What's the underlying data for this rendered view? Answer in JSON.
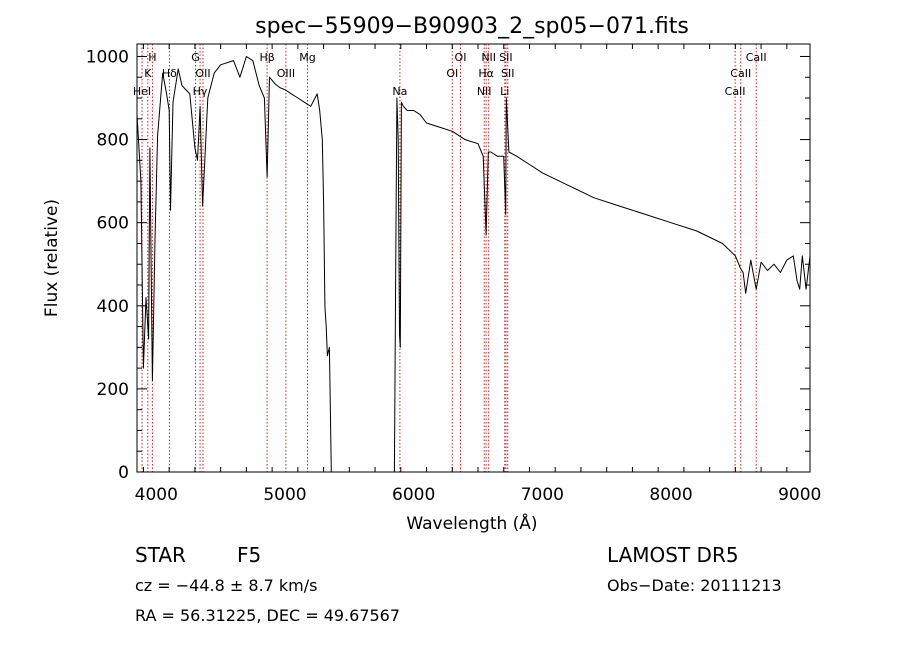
{
  "title": "spec−55909−B90903_2_sp05−071.fits",
  "chart_data": {
    "type": "line",
    "title": "spec−55909−B90903_2_sp05−071.fits",
    "xlabel": "Wavelength (Å)",
    "ylabel": "Flux (relative)",
    "xlim": [
      3850,
      9080
    ],
    "ylim": [
      0,
      1030
    ],
    "xticks": [
      4000,
      5000,
      6000,
      7000,
      8000,
      9000
    ],
    "yticks": [
      0,
      200,
      400,
      600,
      800,
      1000
    ],
    "grid": false,
    "series": [
      {
        "color": "#000000",
        "x": [
          3850,
          3880,
          3900,
          3920,
          3940,
          3950,
          3960,
          3970,
          3990,
          4010,
          4050,
          4080,
          4100,
          4110,
          4130,
          4170,
          4200,
          4260,
          4300,
          4320,
          4340,
          4360,
          4400,
          4450,
          4500,
          4600,
          4650,
          4700,
          4750,
          4800,
          4840,
          4861,
          4880,
          4920,
          4960,
          5000,
          5050,
          5100,
          5150,
          5200,
          5250,
          5270,
          5290,
          5300,
          5310,
          5320,
          5330,
          5345,
          5360,
          5850,
          5862,
          5870,
          5880,
          5890,
          5896,
          5905,
          5920,
          5950,
          6000,
          6050,
          6100,
          6200,
          6300,
          6400,
          6500,
          6540,
          6563,
          6580,
          6600,
          6650,
          6700,
          6715,
          6720,
          6740,
          6800,
          6900,
          7000,
          7200,
          7400,
          7600,
          7800,
          8000,
          8200,
          8400,
          8500,
          8540,
          8560,
          8580,
          8620,
          8662,
          8700,
          8750,
          8800,
          8850,
          8900,
          8950,
          8980,
          9000,
          9020,
          9050,
          9080
        ],
        "y": [
          860,
          700,
          250,
          420,
          320,
          780,
          480,
          220,
          560,
          810,
          960,
          910,
          870,
          630,
          890,
          970,
          930,
          910,
          780,
          750,
          880,
          640,
          900,
          960,
          980,
          990,
          950,
          1000,
          990,
          930,
          900,
          710,
          950,
          935,
          925,
          920,
          910,
          900,
          890,
          880,
          910,
          870,
          800,
          650,
          400,
          350,
          280,
          300,
          0,
          0,
          560,
          900,
          800,
          330,
          300,
          890,
          880,
          870,
          870,
          860,
          840,
          830,
          820,
          800,
          790,
          760,
          570,
          770,
          770,
          760,
          760,
          620,
          900,
          770,
          760,
          740,
          720,
          690,
          660,
          640,
          620,
          600,
          580,
          550,
          520,
          490,
          480,
          430,
          510,
          440,
          505,
          485,
          500,
          480,
          510,
          520,
          460,
          440,
          520,
          440,
          520
        ],
        "role": "observed flux (approx. envelope reading)"
      }
    ],
    "emission_lines": [
      {
        "label": "H",
        "wavelength": 3970,
        "row": 1
      },
      {
        "label": "K",
        "wavelength": 3934,
        "row": 2
      },
      {
        "label": "HeI",
        "wavelength": 3889,
        "row": 3
      },
      {
        "label": "Hδ",
        "wavelength": 4102,
        "row": 2
      },
      {
        "label": "G",
        "wavelength": 4305,
        "row": 1
      },
      {
        "label": "OII",
        "wavelength": 4363,
        "row": 2
      },
      {
        "label": "Hγ",
        "wavelength": 4340,
        "row": 3
      },
      {
        "label": "Hβ",
        "wavelength": 4861,
        "row": 1
      },
      {
        "label": "OIII",
        "wavelength": 5007,
        "row": 2
      },
      {
        "label": "Mg",
        "wavelength": 5175,
        "row": 1
      },
      {
        "label": "Na",
        "wavelength": 5893,
        "row": 3
      },
      {
        "label": "OI",
        "wavelength": 6364,
        "row": 1
      },
      {
        "label": "OI",
        "wavelength": 6300,
        "row": 2
      },
      {
        "label": "NII",
        "wavelength": 6583,
        "row": 1
      },
      {
        "label": "Hα",
        "wavelength": 6563,
        "row": 2
      },
      {
        "label": "NII",
        "wavelength": 6548,
        "row": 3
      },
      {
        "label": "SII",
        "wavelength": 6717,
        "row": 1
      },
      {
        "label": "SII",
        "wavelength": 6731,
        "row": 2
      },
      {
        "label": "Li",
        "wavelength": 6708,
        "row": 3
      },
      {
        "label": "CaII",
        "wavelength": 8662,
        "row": 1
      },
      {
        "label": "CaII",
        "wavelength": 8542,
        "row": 2
      },
      {
        "label": "CaII",
        "wavelength": 8498,
        "row": 3
      }
    ],
    "line_color": "#cc2222"
  },
  "info": {
    "class_label": "STAR",
    "subclass": "F5",
    "survey": "LAMOST DR5",
    "cz": "cz = −44.8 ± 8.7 km/s",
    "obs_date": "Obs−Date: 20111213",
    "coords": "RA =  56.31225, DEC =  49.67567"
  }
}
